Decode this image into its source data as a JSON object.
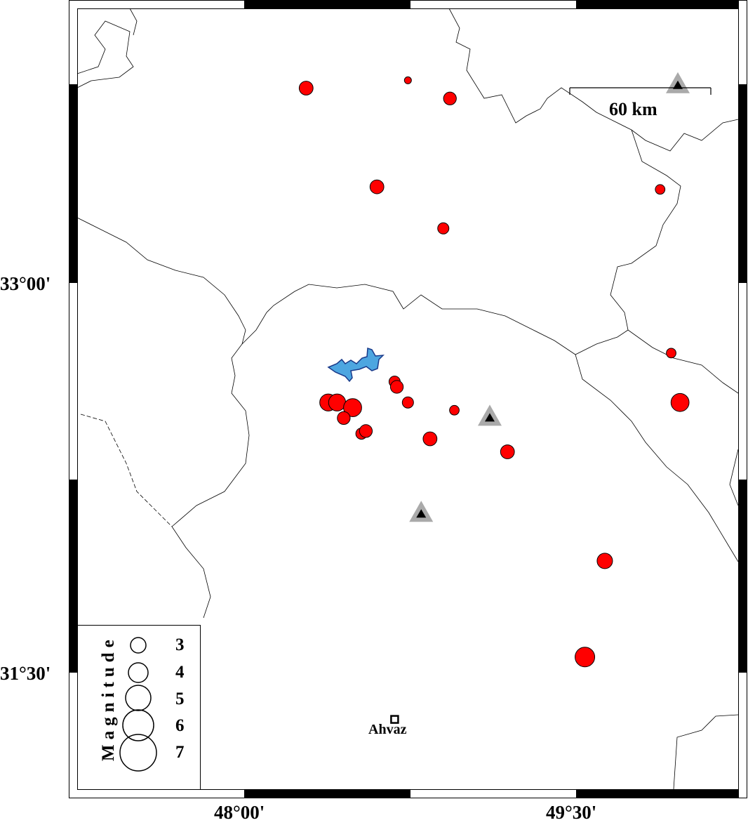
{
  "map": {
    "axes": {
      "lat_ticks": [
        "33°00'",
        "31°30'"
      ],
      "lon_ticks": [
        "48°00'",
        "49°30'"
      ]
    },
    "scale_bar": {
      "label": "60 km"
    },
    "legend": {
      "title": "Magnitude",
      "entries": [
        "3",
        "4",
        "5",
        "6",
        "7"
      ]
    },
    "city": {
      "name": "Ahvaz",
      "lon": 48.68,
      "lat": 31.32
    },
    "colors": {
      "earthquake": "#ff0000",
      "lake": "#4da6e0",
      "station_outer": "#aaaaaa",
      "station_inner": "#000000"
    },
    "stations": [
      {
        "lon": 49.96,
        "lat": 33.76
      },
      {
        "lon": 49.11,
        "lat": 32.48
      },
      {
        "lon": 48.8,
        "lat": 32.11
      }
    ],
    "earthquakes": [
      {
        "lon": 48.28,
        "lat": 33.75,
        "mag": 2.7
      },
      {
        "lon": 48.74,
        "lat": 33.78,
        "mag": 1.4
      },
      {
        "lon": 48.93,
        "lat": 33.71,
        "mag": 2.5
      },
      {
        "lon": 48.6,
        "lat": 33.37,
        "mag": 2.7
      },
      {
        "lon": 48.9,
        "lat": 33.21,
        "mag": 2.2
      },
      {
        "lon": 49.88,
        "lat": 33.36,
        "mag": 1.9
      },
      {
        "lon": 49.93,
        "lat": 32.73,
        "mag": 1.9
      },
      {
        "lon": 49.97,
        "lat": 32.54,
        "mag": 3.5
      },
      {
        "lon": 48.38,
        "lat": 32.54,
        "mag": 3.3
      },
      {
        "lon": 48.42,
        "lat": 32.54,
        "mag": 3.3
      },
      {
        "lon": 48.49,
        "lat": 32.52,
        "mag": 3.5
      },
      {
        "lon": 48.45,
        "lat": 32.48,
        "mag": 2.5
      },
      {
        "lon": 48.53,
        "lat": 32.42,
        "mag": 2.2
      },
      {
        "lon": 48.55,
        "lat": 32.43,
        "mag": 2.5
      },
      {
        "lon": 48.68,
        "lat": 32.62,
        "mag": 2.2
      },
      {
        "lon": 48.69,
        "lat": 32.6,
        "mag": 2.5
      },
      {
        "lon": 48.74,
        "lat": 32.54,
        "mag": 2.2
      },
      {
        "lon": 48.95,
        "lat": 32.51,
        "mag": 1.9
      },
      {
        "lon": 48.84,
        "lat": 32.4,
        "mag": 2.7
      },
      {
        "lon": 49.19,
        "lat": 32.35,
        "mag": 2.7
      },
      {
        "lon": 49.63,
        "lat": 31.93,
        "mag": 3.0
      },
      {
        "lon": 49.54,
        "lat": 31.56,
        "mag": 3.8
      }
    ]
  }
}
